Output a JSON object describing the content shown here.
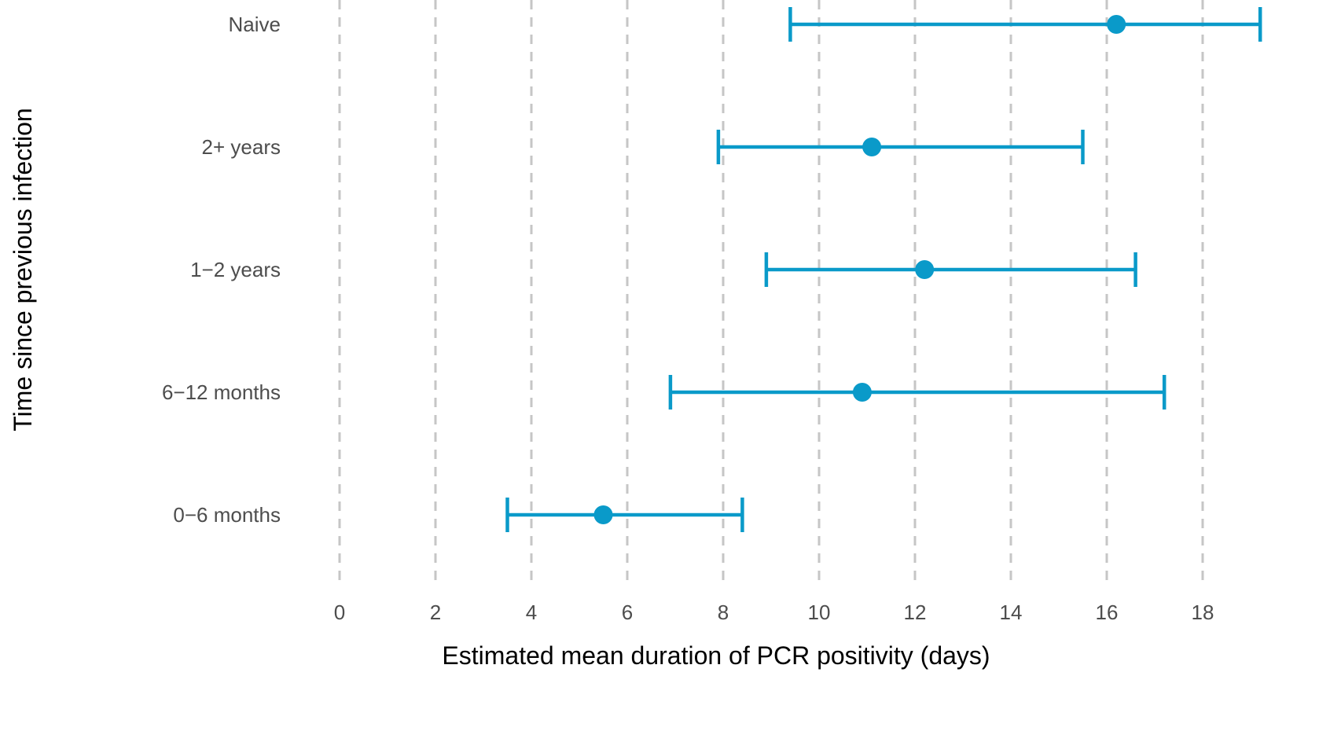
{
  "chart_data": {
    "type": "scatter",
    "subtype": "point-range",
    "xlabel": "Estimated mean duration of PCR positivity (days)",
    "ylabel": "Time since previous infection",
    "xlim": [
      0,
      18.7
    ],
    "x_ticks": [
      0,
      2,
      4,
      6,
      8,
      10,
      12,
      14,
      16,
      18
    ],
    "grid": "vertical dashed major lines",
    "legend": "none",
    "color": "#0a9ac9",
    "categories": [
      "Naive",
      "2+ years",
      "1−2 years",
      "6−12 months",
      "0−6 months"
    ],
    "points": [
      {
        "category": "Naive",
        "estimate": 16.2,
        "lower": 9.4,
        "upper": 19.2
      },
      {
        "category": "2+ years",
        "estimate": 11.1,
        "lower": 7.9,
        "upper": 15.5
      },
      {
        "category": "1−2 years",
        "estimate": 12.2,
        "lower": 8.9,
        "upper": 16.6
      },
      {
        "category": "6−12 months",
        "estimate": 10.9,
        "lower": 6.9,
        "upper": 17.2
      },
      {
        "category": "0−6 months",
        "estimate": 5.5,
        "lower": 3.5,
        "upper": 8.4
      }
    ]
  }
}
